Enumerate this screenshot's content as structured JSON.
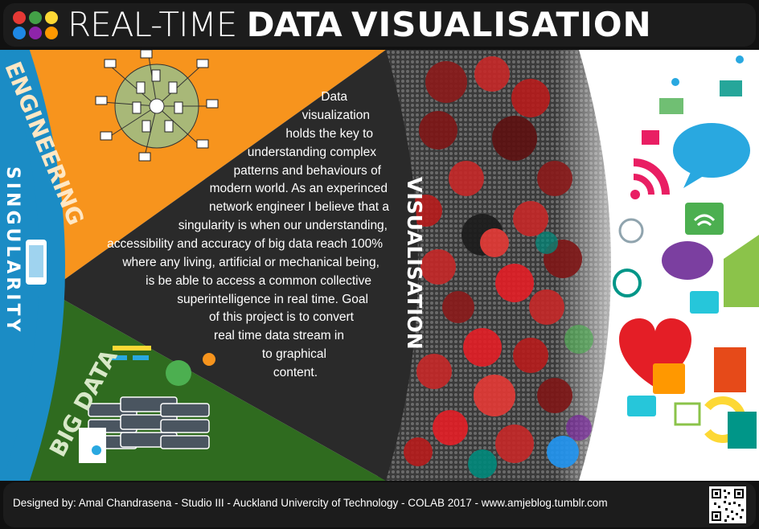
{
  "header": {
    "title_part1": "REAL-TIME",
    "title_part2": "DATA",
    "title_part3": "VISUALISATION",
    "logo_dot_colors": [
      "#e53935",
      "#43a047",
      "#fdd835",
      "#1e88e5",
      "#8e24aa",
      "#ff9800"
    ]
  },
  "labels": {
    "engineering": "ENGINEERING",
    "singularity": "SINGULARITY",
    "big_data": "BIG DATA",
    "visualisation": "VISUALISATION"
  },
  "body_text": [
    "Data",
    "visualization",
    "holds the key to",
    "understanding complex",
    "patterns and behaviours of",
    "modern world. As an experinced",
    "network engineer I believe that a",
    "singularity is when our understanding,",
    "accessibility and accuracy of big data reach 100%",
    "where any living, artificial or mechanical being,",
    "is be able to access a common collective",
    "superintelligence in real time. Goal",
    "of this project is to convert",
    "real time data stream in",
    "to graphical",
    "content."
  ],
  "footer": {
    "credit": "Designed by: Amal Chandrasena - Studio III - Auckland Univercity of Technology - COLAB 2017 - www.amjeblog.tumblr.com"
  },
  "colors": {
    "orange": "#f7941d",
    "green": "#2f6b1f",
    "blue": "#1b8cc5",
    "dark": "#2a2a2a",
    "accent_red": "#e41e26"
  },
  "icons": [
    "phone-icon",
    "network-diagram-icon",
    "server-stack-icon",
    "report-icon",
    "heart-icon",
    "speech-bubble-icon",
    "wifi-icon",
    "shopping-basket-icon",
    "qr-code-icon"
  ]
}
